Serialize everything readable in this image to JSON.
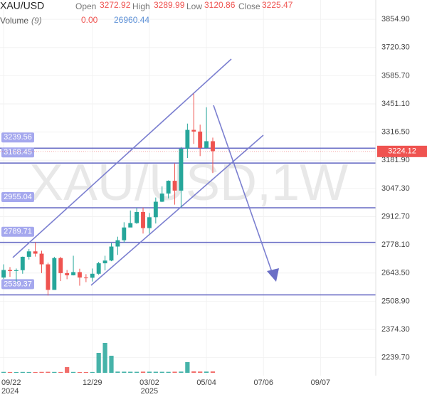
{
  "chart_data": {
    "type": "candlestick",
    "title": "XAU/USD",
    "watermark": "XAU/USD,1W",
    "header": {
      "open_label": "Open",
      "open": 3272.92,
      "high_label": "High",
      "high": 3289.99,
      "low_label": "Low",
      "low": 3120.86,
      "close_label": "Close",
      "close": 3225.47
    },
    "volume_legend": {
      "label": "Volume",
      "period": "(9)",
      "values": [
        0,
        26960.44
      ],
      "value_labels": [
        "0.00",
        "26960.44"
      ]
    },
    "x": [
      "2024-09-22",
      "2024-09-29",
      "2024-10-06",
      "2024-10-13",
      "2024-10-20",
      "2024-10-27",
      "2024-11-03",
      "2024-11-10",
      "2024-11-17",
      "2024-11-24",
      "2024-12-01",
      "2024-12-08",
      "2024-12-15",
      "2024-12-22",
      "2024-12-29",
      "2025-01-05",
      "2025-01-12",
      "2025-01-19",
      "2025-01-26",
      "2025-02-02",
      "2025-02-09",
      "2025-02-16",
      "2025-02-23",
      "2025-03-02",
      "2025-03-09",
      "2025-03-16",
      "2025-03-23",
      "2025-03-30",
      "2025-04-06",
      "2025-04-13",
      "2025-04-20",
      "2025-04-27",
      "2025-05-04",
      "2025-05-11"
    ],
    "open": [
      2622,
      2658,
      2653,
      2657,
      2721,
      2747,
      2736,
      2685,
      2563,
      2715,
      2643,
      2633,
      2648,
      2622,
      2621,
      2640,
      2690,
      2703,
      2770,
      2800,
      2861,
      2882,
      2935,
      2858,
      2910,
      2984,
      3023,
      3084,
      3037,
      3237,
      3327,
      3319,
      3241,
      3272.92
    ],
    "high": [
      2685,
      2672,
      2665,
      2722,
      2758,
      2790,
      2750,
      2693,
      2721,
      2721,
      2658,
      2726,
      2664,
      2638,
      2665,
      2697,
      2726,
      2786,
      2817,
      2886,
      2942,
      2954,
      2956,
      2930,
      3004,
      3057,
      3086,
      3167,
      3245,
      3357,
      3500,
      3352,
      3435,
      3289.99
    ],
    "low": [
      2615,
      2625,
      2603,
      2640,
      2708,
      2722,
      2643,
      2536,
      2563,
      2605,
      2614,
      2632,
      2583,
      2600,
      2603,
      2635,
      2656,
      2700,
      2730,
      2789,
      2864,
      2878,
      2832,
      2832,
      2880,
      2982,
      3000,
      2970,
      2956,
      3193,
      3260,
      3202,
      3238,
      3120.86
    ],
    "close": [
      2658,
      2653,
      2657,
      2721,
      2747,
      2736,
      2685,
      2563,
      2715,
      2643,
      2633,
      2648,
      2622,
      2621,
      2640,
      2690,
      2703,
      2770,
      2800,
      2861,
      2882,
      2935,
      2858,
      2910,
      2984,
      3023,
      3084,
      3037,
      3237,
      3327,
      3319,
      3241,
      3272.92,
      3225.47
    ],
    "volume": [
      18000,
      16000,
      15000,
      17000,
      16000,
      15000,
      18000,
      20000,
      17000,
      16000,
      112000,
      17000,
      15000,
      14000,
      16000,
      392000,
      588000,
      336000,
      24000,
      22000,
      21000,
      20000,
      23000,
      22000,
      21000,
      20000,
      19000,
      22000,
      24000,
      210000,
      28000,
      25000,
      24000,
      26960.44
    ],
    "vlim": [
      0,
      700000
    ],
    "up_color": "#26a69a",
    "down_color": "#ef5350",
    "level_color": "#6b6fc6",
    "levels": [
      3239.56,
      3168.45,
      2955.04,
      2789.71,
      2539.37
    ],
    "last_price": 3224.12,
    "ylim": [
      2153.5,
      3947.1
    ],
    "yticks": [
      {
        "value": 3854.9,
        "label": "3854.90"
      },
      {
        "value": 3720.3,
        "label": "3720.30"
      },
      {
        "value": 3585.7,
        "label": "3585.70"
      },
      {
        "value": 3451.1,
        "label": "3451.10"
      },
      {
        "value": 3316.5,
        "label": "3316.50"
      },
      {
        "value": 3181.9,
        "label": "3181.90"
      },
      {
        "value": 3047.3,
        "label": "3047.30"
      },
      {
        "value": 2912.7,
        "label": "2912.70"
      },
      {
        "value": 2778.1,
        "label": "2778.10"
      },
      {
        "value": 2643.5,
        "label": "2643.50"
      },
      {
        "value": 2508.9,
        "label": "2508.90"
      },
      {
        "value": 2374.3,
        "label": "2374.30"
      },
      {
        "value": 2239.7,
        "label": "2239.70"
      }
    ],
    "xlim": [
      "2024-09-18",
      "2025-11-07"
    ],
    "xticks": [
      {
        "value": "2024-09-22",
        "label": "09/22"
      },
      {
        "value": "2024-12-29",
        "label": "12/29"
      },
      {
        "value": "2025-03-02",
        "label": "03/02"
      },
      {
        "value": "2025-05-04",
        "label": "05/04"
      },
      {
        "value": "2025-07-06",
        "label": "07/06"
      },
      {
        "value": "2025-09-07",
        "label": "09/07"
      }
    ],
    "x_year_labels": [
      {
        "value": "2024-09-22",
        "label": "2024"
      },
      {
        "value": "2025-03-02",
        "label": "2025"
      }
    ],
    "grid": true
  }
}
